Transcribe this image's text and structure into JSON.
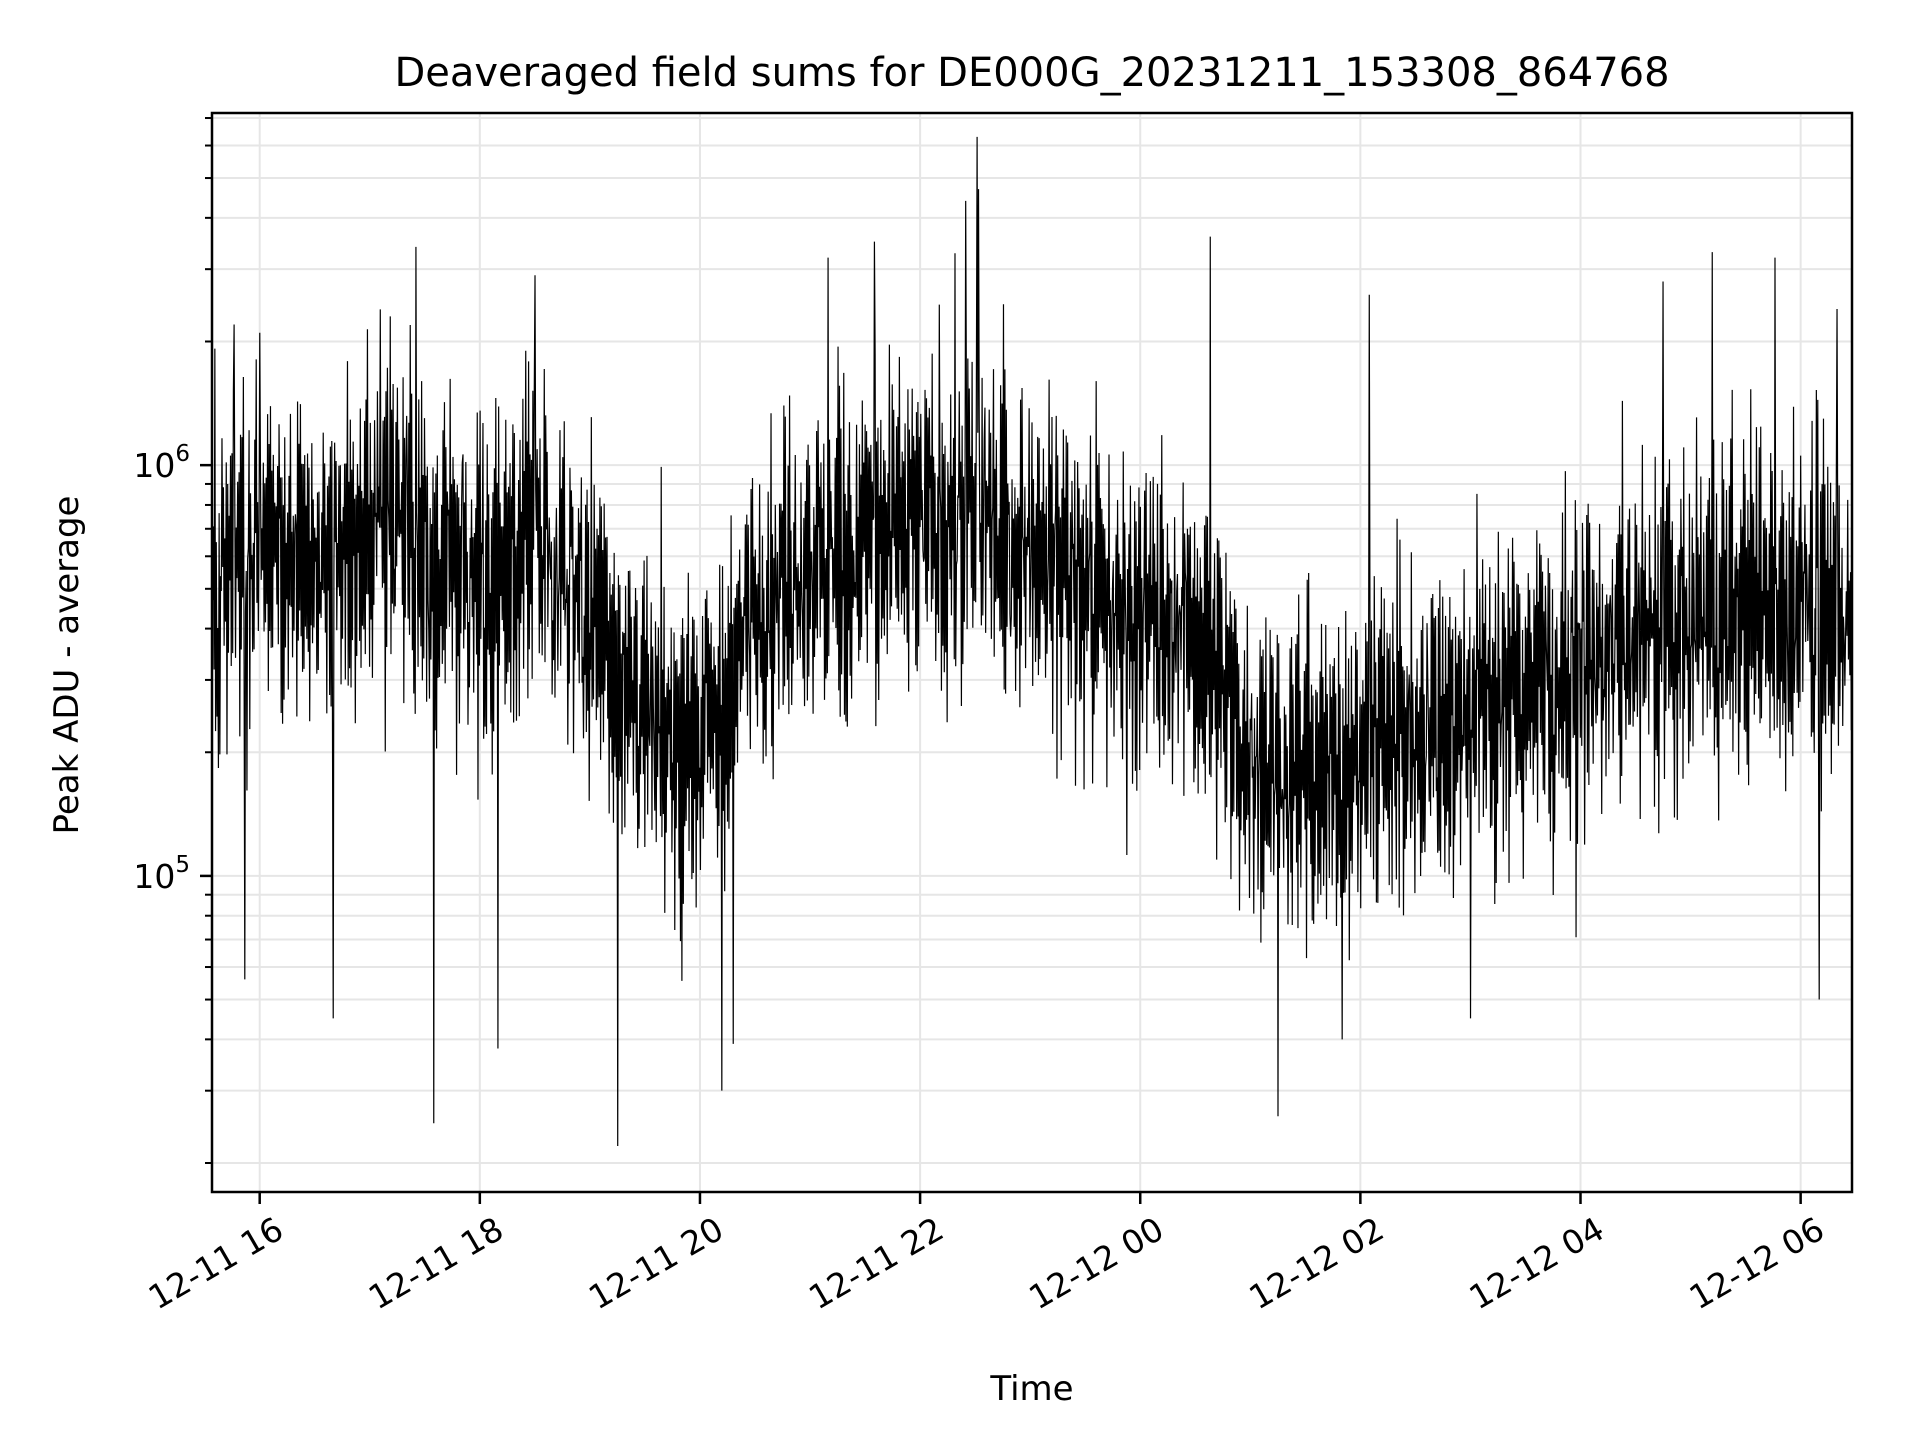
{
  "chart_data": {
    "type": "line",
    "title": "Deaveraged field sums for DE000G_20231211_153308_864768",
    "xlabel": "Time",
    "ylabel": "Peak ADU - average",
    "yscale": "log",
    "xlim": [
      "2023-12-11 15:34",
      "2023-12-12 06:28"
    ],
    "ylim": [
      17000,
      7200000
    ],
    "grid": true,
    "line_color": "#000000",
    "grid_color": "#e6e6e6",
    "x_ticks": [
      {
        "value": "2023-12-11 16:00",
        "label": "12-11 16"
      },
      {
        "value": "2023-12-11 18:00",
        "label": "12-11 18"
      },
      {
        "value": "2023-12-11 20:00",
        "label": "12-11 20"
      },
      {
        "value": "2023-12-11 22:00",
        "label": "12-11 22"
      },
      {
        "value": "2023-12-12 00:00",
        "label": "12-12 00"
      },
      {
        "value": "2023-12-12 02:00",
        "label": "12-12 02"
      },
      {
        "value": "2023-12-12 04:00",
        "label": "12-12 04"
      },
      {
        "value": "2023-12-12 06:00",
        "label": "12-12 06"
      }
    ],
    "y_ticks": [
      {
        "value": 100000,
        "base": "10",
        "exp": "5"
      },
      {
        "value": 1000000,
        "base": "10",
        "exp": "6"
      }
    ],
    "series": [
      {
        "name": "",
        "sampled_points": [
          {
            "x": "2023-12-11 15:34",
            "y": 480000
          },
          {
            "x": "2023-12-11 16:00",
            "y": 620000
          },
          {
            "x": "2023-12-11 16:30",
            "y": 560000
          },
          {
            "x": "2023-12-11 17:00",
            "y": 700000
          },
          {
            "x": "2023-12-11 17:15",
            "y": 900000
          },
          {
            "x": "2023-12-11 17:30",
            "y": 620000
          },
          {
            "x": "2023-12-11 18:00",
            "y": 480000
          },
          {
            "x": "2023-12-11 18:30",
            "y": 700000
          },
          {
            "x": "2023-12-11 19:00",
            "y": 450000
          },
          {
            "x": "2023-12-11 19:30",
            "y": 250000
          },
          {
            "x": "2023-12-11 19:45",
            "y": 200000
          },
          {
            "x": "2023-12-11 20:15",
            "y": 250000
          },
          {
            "x": "2023-12-11 20:30",
            "y": 480000
          },
          {
            "x": "2023-12-11 21:00",
            "y": 550000
          },
          {
            "x": "2023-12-11 21:30",
            "y": 650000
          },
          {
            "x": "2023-12-11 22:00",
            "y": 700000
          },
          {
            "x": "2023-12-11 22:30",
            "y": 750000
          },
          {
            "x": "2023-12-11 23:00",
            "y": 620000
          },
          {
            "x": "2023-12-11 23:30",
            "y": 500000
          },
          {
            "x": "2023-12-12 00:00",
            "y": 430000
          },
          {
            "x": "2023-12-12 00:30",
            "y": 380000
          },
          {
            "x": "2023-12-12 01:00",
            "y": 200000
          },
          {
            "x": "2023-12-12 01:30",
            "y": 170000
          },
          {
            "x": "2023-12-12 02:00",
            "y": 200000
          },
          {
            "x": "2023-12-12 02:30",
            "y": 230000
          },
          {
            "x": "2023-12-12 03:00",
            "y": 260000
          },
          {
            "x": "2023-12-12 03:30",
            "y": 280000
          },
          {
            "x": "2023-12-12 04:00",
            "y": 330000
          },
          {
            "x": "2023-12-12 04:30",
            "y": 380000
          },
          {
            "x": "2023-12-12 05:00",
            "y": 400000
          },
          {
            "x": "2023-12-12 05:30",
            "y": 450000
          },
          {
            "x": "2023-12-12 06:00",
            "y": 480000
          },
          {
            "x": "2023-12-12 06:28",
            "y": 430000
          }
        ],
        "spikes_high": [
          {
            "x": "2023-12-11 15:46",
            "y": 2200000
          },
          {
            "x": "2023-12-11 16:00",
            "y": 2100000
          },
          {
            "x": "2023-12-11 17:25",
            "y": 3400000
          },
          {
            "x": "2023-12-11 18:30",
            "y": 2900000
          },
          {
            "x": "2023-12-11 21:10",
            "y": 3200000
          },
          {
            "x": "2023-12-11 21:35",
            "y": 3500000
          },
          {
            "x": "2023-12-11 22:25",
            "y": 4400000
          },
          {
            "x": "2023-12-11 22:31",
            "y": 6300000
          },
          {
            "x": "2023-12-11 22:32",
            "y": 4700000
          },
          {
            "x": "2023-12-12 00:38",
            "y": 3600000
          },
          {
            "x": "2023-12-12 02:05",
            "y": 2600000
          },
          {
            "x": "2023-12-12 04:45",
            "y": 2800000
          },
          {
            "x": "2023-12-12 05:12",
            "y": 3300000
          },
          {
            "x": "2023-12-12 05:46",
            "y": 3200000
          },
          {
            "x": "2023-12-12 06:20",
            "y": 2400000
          }
        ],
        "spikes_low": [
          {
            "x": "2023-12-11 15:52",
            "y": 56000
          },
          {
            "x": "2023-12-11 16:40",
            "y": 45000
          },
          {
            "x": "2023-12-11 17:35",
            "y": 25000
          },
          {
            "x": "2023-12-11 18:10",
            "y": 38000
          },
          {
            "x": "2023-12-11 19:15",
            "y": 22000
          },
          {
            "x": "2023-12-11 20:12",
            "y": 30000
          },
          {
            "x": "2023-12-11 20:18",
            "y": 39000
          },
          {
            "x": "2023-12-12 01:15",
            "y": 26000
          },
          {
            "x": "2023-12-12 01:50",
            "y": 40000
          },
          {
            "x": "2023-12-12 03:00",
            "y": 45000
          },
          {
            "x": "2023-12-12 06:10",
            "y": 50000
          }
        ]
      }
    ]
  }
}
